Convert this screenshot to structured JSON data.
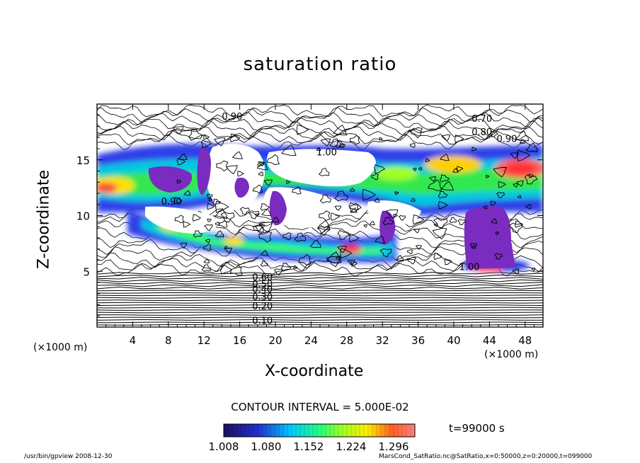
{
  "chart_data": {
    "type": "heatmap",
    "title": "saturation ratio",
    "xlabel": "X-coordinate",
    "ylabel": "Z-coordinate",
    "x_unit": "(×1000 m)",
    "z_unit": "(×1000 m)",
    "xlim": [
      0,
      50
    ],
    "ylim": [
      0,
      20
    ],
    "x_ticks": [
      4,
      8,
      12,
      16,
      20,
      24,
      28,
      32,
      36,
      40,
      44,
      48
    ],
    "y_ticks": [
      5,
      10,
      15
    ],
    "contour_interval_label": "CONTOUR INTERVAL = 5.000E-02",
    "contour_labels": [
      {
        "text": "0.10",
        "x": 17.4,
        "z": 0.3
      },
      {
        "text": "0.20",
        "x": 17.4,
        "z": 1.6
      },
      {
        "text": "0.30",
        "x": 17.4,
        "z": 2.4
      },
      {
        "text": "0.40",
        "x": 17.4,
        "z": 3.1
      },
      {
        "text": "0.50",
        "x": 17.4,
        "z": 3.6
      },
      {
        "text": "0.60",
        "x": 17.4,
        "z": 4.2
      },
      {
        "text": "0.70",
        "x": 42.0,
        "z": 18.4
      },
      {
        "text": "0.80",
        "x": 42.0,
        "z": 17.2
      },
      {
        "text": "0.90",
        "x": 44.8,
        "z": 16.6
      },
      {
        "text": "0.90",
        "x": 14.0,
        "z": 18.6
      },
      {
        "text": "0.90",
        "x": 7.2,
        "z": 11.0
      },
      {
        "text": "1.00",
        "x": 24.6,
        "z": 15.4
      },
      {
        "text": "1.00",
        "x": 40.6,
        "z": 5.1
      }
    ],
    "colorbar": {
      "ticks": [
        "1.008",
        "1.080",
        "1.152",
        "1.224",
        "1.296"
      ],
      "min": 1.008,
      "max": 1.332
    },
    "time_label": "t=99000 s"
  },
  "footer": {
    "left": "/usr/bin/gpview   2008-12-30",
    "right": "MarsCond_SatRatio.nc@SatRatio,x=0:50000,z=0:20000,t=099000"
  },
  "colors": {
    "low": "#1a1a8c",
    "mid_low": "#3a4cff",
    "mid": "#00e6e6",
    "green": "#33ff33",
    "yellow": "#ffee00",
    "high": "#ff4040",
    "saturated_violet": "#7a2bc0"
  }
}
